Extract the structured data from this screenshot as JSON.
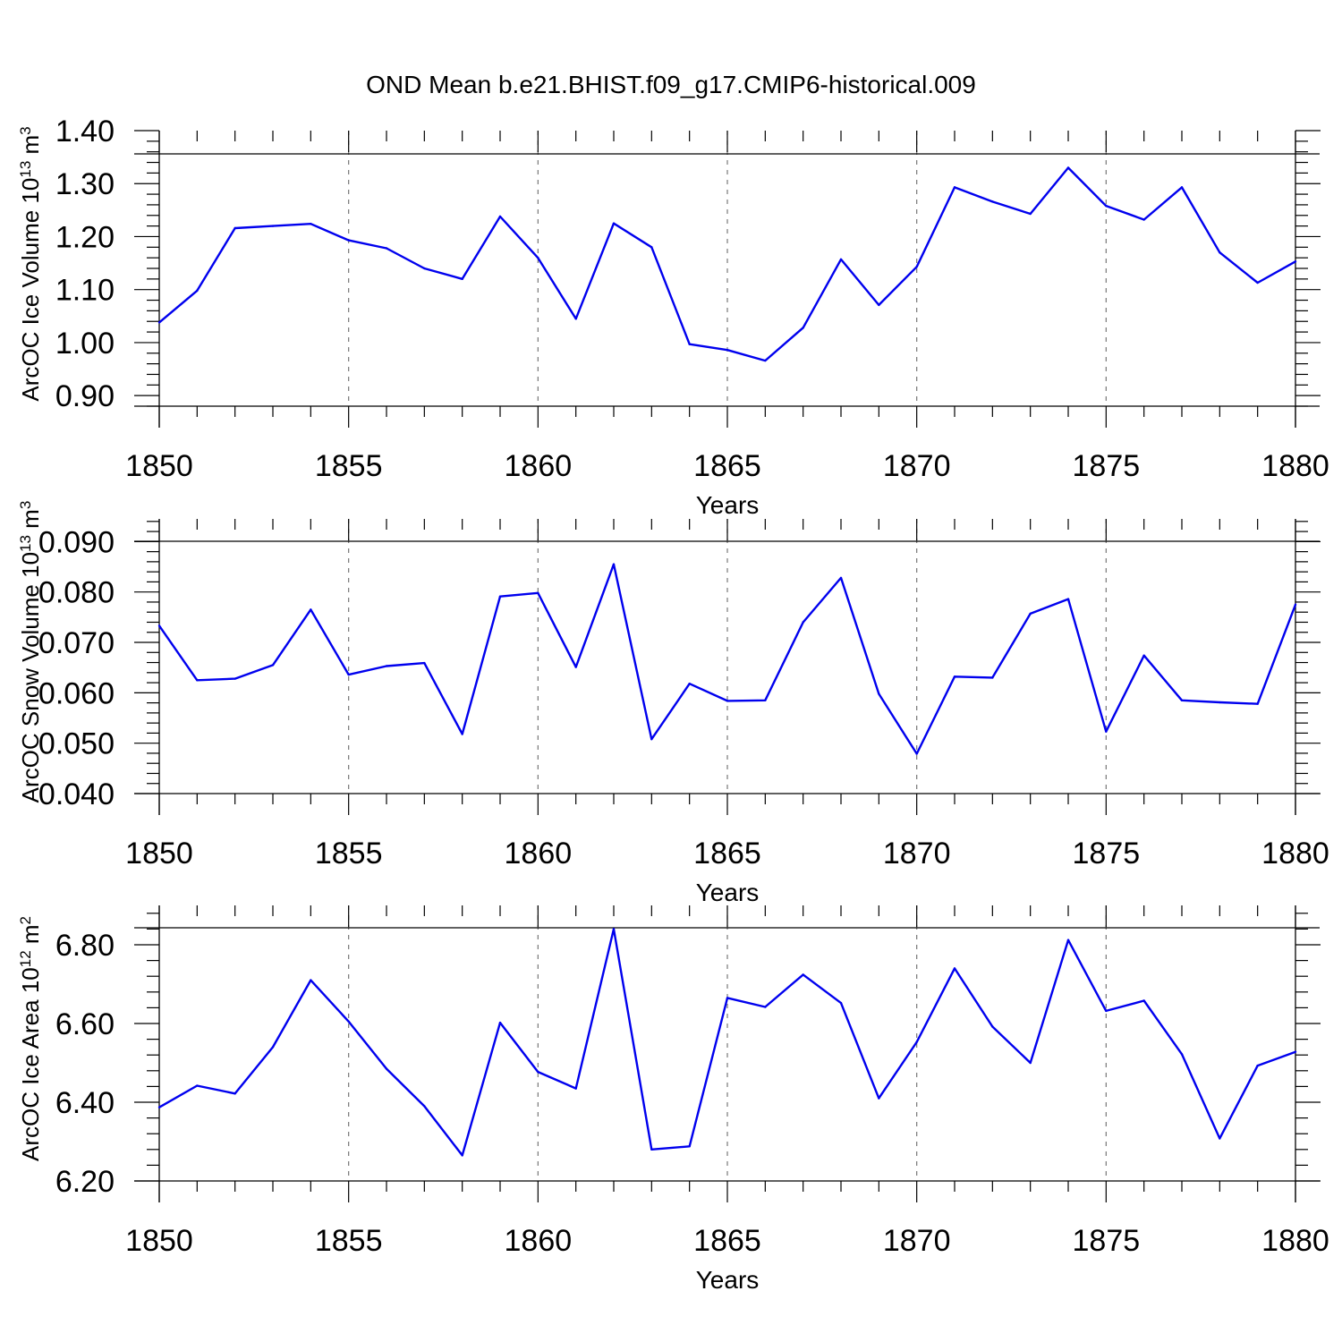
{
  "title": "OND Mean b.e21.BHIST.f09_g17.CMIP6-historical.009",
  "colors": {
    "line": "#0000ee",
    "frame": "#000000",
    "grid": "#777777"
  },
  "chart_data": [
    {
      "type": "line",
      "title": "",
      "xlabel": "Years",
      "ylabel": {
        "base": "ArcOC Ice Volume 10",
        "exp": "13",
        "unit": " m",
        "unit_exp": "3"
      },
      "xlim": [
        1850,
        1880
      ],
      "ylim": [
        0.88,
        1.4
      ],
      "x_ticks": [
        "1850",
        "1855",
        "1860",
        "1865",
        "1870",
        "1875",
        "1880"
      ],
      "y_ticks": [
        "0.90",
        "1.00",
        "1.10",
        "1.20",
        "1.30",
        "1.40"
      ],
      "x": [
        1850,
        1851,
        1852,
        1853,
        1854,
        1855,
        1856,
        1857,
        1858,
        1859,
        1860,
        1861,
        1862,
        1863,
        1864,
        1865,
        1866,
        1867,
        1868,
        1869,
        1870,
        1871,
        1872,
        1873,
        1874,
        1875,
        1876,
        1877,
        1878,
        1879,
        1880
      ],
      "values": [
        1.038,
        1.098,
        1.216,
        1.22,
        1.224,
        1.193,
        1.178,
        1.14,
        1.12,
        1.238,
        1.16,
        1.045,
        1.225,
        1.18,
        0.997,
        0.986,
        0.966,
        1.028,
        1.157,
        1.071,
        1.143,
        1.293,
        1.266,
        1.243,
        1.33,
        1.258,
        1.232,
        1.293,
        1.17,
        1.113,
        1.153
      ],
      "grid": "dashed vertical at major x ticks"
    },
    {
      "type": "line",
      "title": "",
      "xlabel": "Years",
      "ylabel": {
        "base": "ArcOC Snow Volume 10",
        "exp": "13",
        "unit": " m",
        "unit_exp": "3"
      },
      "xlim": [
        1850,
        1880
      ],
      "ylim": [
        0.04,
        0.0945
      ],
      "x_ticks": [
        "1850",
        "1855",
        "1860",
        "1865",
        "1870",
        "1875",
        "1880"
      ],
      "y_ticks": [
        "0.040",
        "0.050",
        "0.060",
        "0.070",
        "0.080",
        "0.090"
      ],
      "x": [
        1850,
        1851,
        1852,
        1853,
        1854,
        1855,
        1856,
        1857,
        1858,
        1859,
        1860,
        1861,
        1862,
        1863,
        1864,
        1865,
        1866,
        1867,
        1868,
        1869,
        1870,
        1871,
        1872,
        1873,
        1874,
        1875,
        1876,
        1877,
        1878,
        1879,
        1880
      ],
      "values": [
        0.0733,
        0.0625,
        0.0628,
        0.0655,
        0.0765,
        0.0636,
        0.0653,
        0.0659,
        0.0518,
        0.0791,
        0.0798,
        0.0651,
        0.0855,
        0.0508,
        0.0618,
        0.0584,
        0.0585,
        0.074,
        0.0828,
        0.0598,
        0.0479,
        0.0632,
        0.063,
        0.0757,
        0.0786,
        0.0523,
        0.0674,
        0.0585,
        0.0581,
        0.0578,
        0.0775
      ],
      "grid": "dashed vertical at major x ticks"
    },
    {
      "type": "line",
      "title": "",
      "xlabel": "Years",
      "ylabel": {
        "base": "ArcOC Ice Area 10",
        "exp": "12",
        "unit": " m",
        "unit_exp": "2"
      },
      "xlim": [
        1850,
        1880
      ],
      "ylim": [
        6.2,
        6.9
      ],
      "x_ticks": [
        "1850",
        "1855",
        "1860",
        "1865",
        "1870",
        "1875",
        "1880"
      ],
      "y_ticks": [
        "6.20",
        "6.40",
        "6.60",
        "6.80"
      ],
      "x": [
        1850,
        1851,
        1852,
        1853,
        1854,
        1855,
        1856,
        1857,
        1858,
        1859,
        1860,
        1861,
        1862,
        1863,
        1864,
        1865,
        1866,
        1867,
        1868,
        1869,
        1870,
        1871,
        1872,
        1873,
        1874,
        1875,
        1876,
        1877,
        1878,
        1879,
        1880
      ],
      "values": [
        6.387,
        6.442,
        6.422,
        6.54,
        6.71,
        6.605,
        6.485,
        6.39,
        6.265,
        6.602,
        6.477,
        6.435,
        6.84,
        6.28,
        6.288,
        6.665,
        6.642,
        6.724,
        6.652,
        6.41,
        6.553,
        6.74,
        6.592,
        6.5,
        6.812,
        6.632,
        6.658,
        6.522,
        6.308,
        6.493,
        6.528
      ],
      "grid": "dashed vertical at major x ticks"
    }
  ]
}
